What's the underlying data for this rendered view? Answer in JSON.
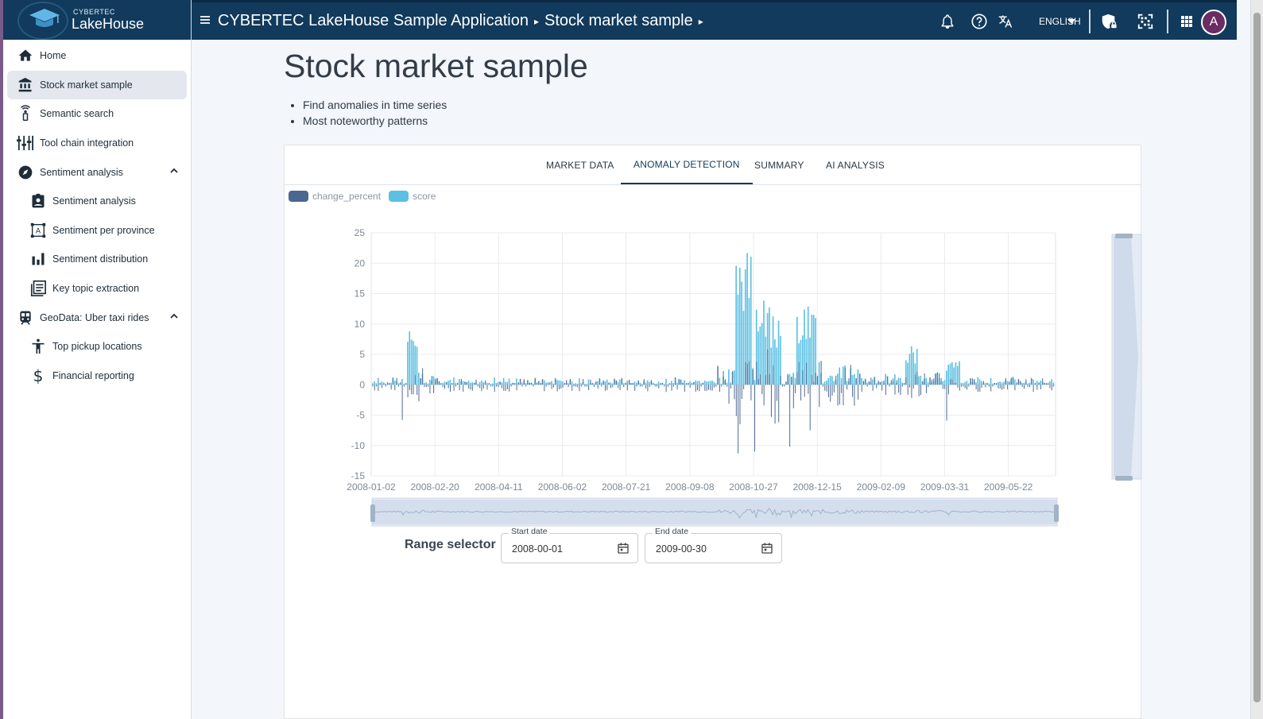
{
  "brand": {
    "small": "CYBERTEC",
    "big": "LakeHouse"
  },
  "sidebar": {
    "items": [
      {
        "label": "Home",
        "icon": "home-icon"
      },
      {
        "label": "Stock market sample",
        "icon": "bank-icon",
        "active": true
      },
      {
        "label": "Semantic search",
        "icon": "broadcast-icon"
      },
      {
        "label": "Tool chain integration",
        "icon": "tools-icon"
      },
      {
        "label": "Sentiment analysis",
        "icon": "compass-icon",
        "expandable": true
      },
      {
        "label": "Sentiment analysis",
        "icon": "contact-icon",
        "sub": true
      },
      {
        "label": "Sentiment per province",
        "icon": "text-frame-icon",
        "sub": true
      },
      {
        "label": "Sentiment distribution",
        "icon": "bar-chart-icon",
        "sub": true
      },
      {
        "label": "Key topic extraction",
        "icon": "article-icon",
        "sub": true
      },
      {
        "label": "GeoData: Uber taxi rides",
        "icon": "train-icon",
        "expandable": true
      },
      {
        "label": "Top pickup locations",
        "icon": "person-icon",
        "sub": true
      },
      {
        "label": "Financial reporting",
        "icon": "dollar-icon",
        "sub": true
      }
    ]
  },
  "topbar": {
    "crumb_app": "CYBERTEC LakeHouse Sample Application",
    "crumb_page": "Stock market sample",
    "language": "ENGLISH",
    "avatar": "A"
  },
  "page": {
    "title": "Stock market sample",
    "bullets": [
      "Find anomalies in time series",
      "Most noteworthy patterns"
    ]
  },
  "tabs": [
    "MARKET DATA",
    "ANOMALY DETECTION",
    "SUMMARY",
    "AI ANALYSIS"
  ],
  "active_tab": "ANOMALY DETECTION",
  "range_selector": {
    "label": "Range selector",
    "start_label": "Start date",
    "start_value": "2008-00-01",
    "end_label": "End date",
    "end_value": "2009-00-30"
  },
  "colors": {
    "change_percent": "#4a6790",
    "score": "#5bc0e3",
    "header": "#113a5c"
  },
  "chart_data": {
    "type": "bar",
    "series": [
      {
        "name": "change_percent"
      },
      {
        "name": "score"
      }
    ],
    "x_tick_labels": [
      "2008-01-02",
      "2008-02-20",
      "2008-04-11",
      "2008-06-02",
      "2008-07-21",
      "2008-09-08",
      "2008-10-27",
      "2008-12-15",
      "2009-02-09",
      "2009-03-31",
      "2009-05-22"
    ],
    "y_ticks": [
      25,
      20,
      15,
      10,
      5,
      0,
      -5,
      -10,
      -15
    ],
    "ylim": [
      -15,
      25
    ],
    "xlim": [
      "2008-01-02",
      "2009-06-30"
    ],
    "grid": true,
    "legend": "top-left",
    "notable_values": {
      "score_peak": 22,
      "score_peak_date": "2008-10-20",
      "change_percent_min": -11.5,
      "change_percent_min_date": "2008-10-15"
    }
  }
}
